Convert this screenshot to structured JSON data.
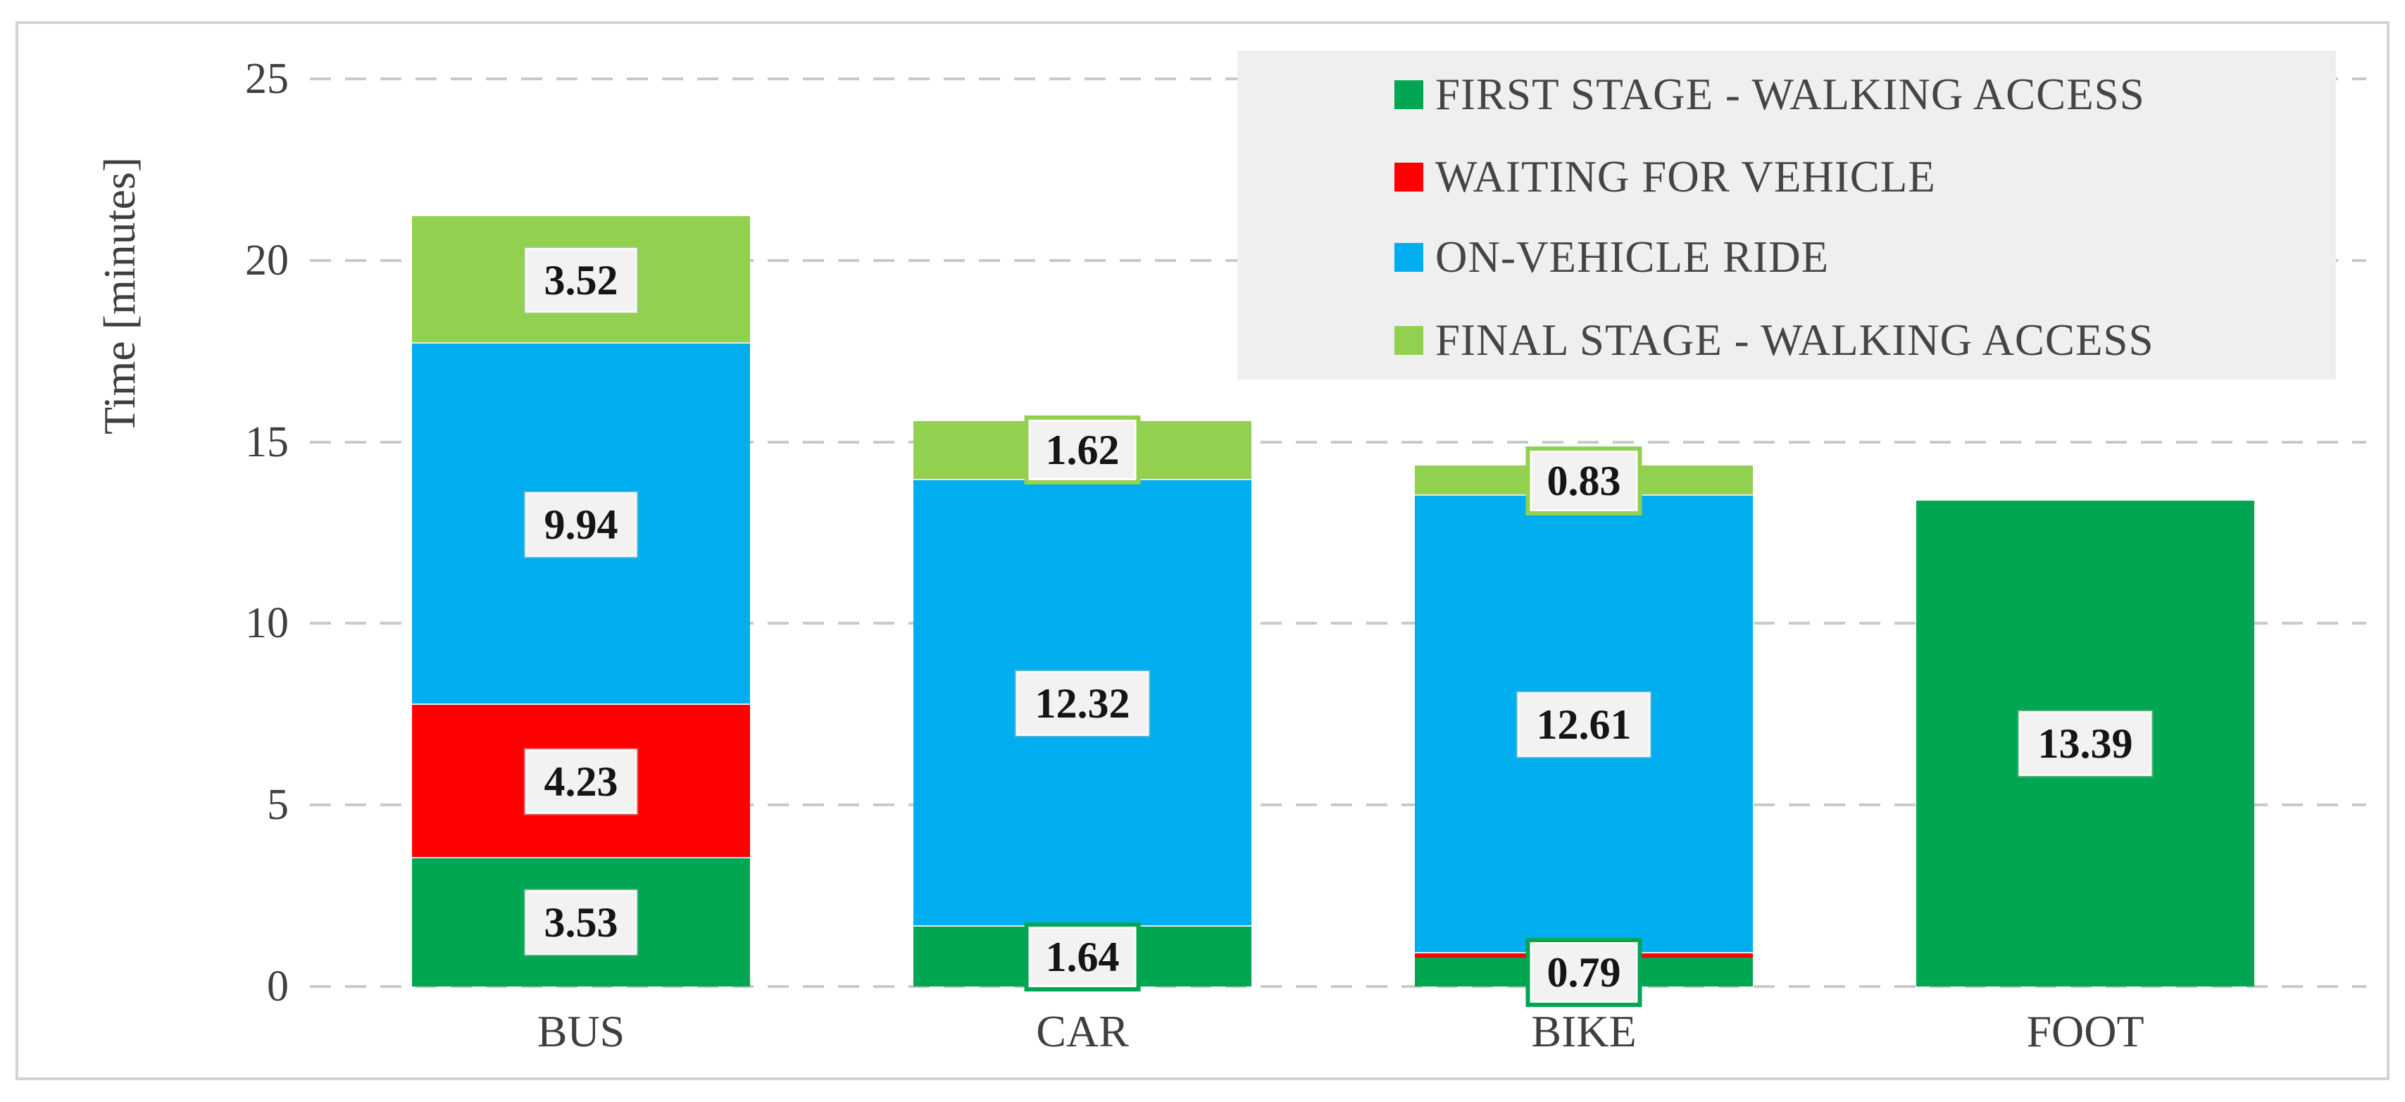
{
  "figure": {
    "background": "#ffffff",
    "frame_border_color": "#d4d4d4"
  },
  "chart_data": {
    "type": "bar",
    "stacked": true,
    "title": "",
    "y_axis": {
      "title": "Time [minutes]",
      "ticks": [
        "0",
        "5",
        "10",
        "15",
        "20",
        "25"
      ],
      "tick_values": [
        0,
        5,
        10,
        15,
        20,
        25
      ],
      "range": [
        0,
        25
      ],
      "grid": "dashed horizontal"
    },
    "categories": [
      "BUS",
      "CAR",
      "BIKE",
      "FOOT"
    ],
    "series": [
      {
        "name": "FIRST STAGE - WALKING ACCESS",
        "color": "#00a651",
        "values": [
          3.53,
          1.64,
          0.79,
          13.39
        ],
        "labels": [
          "3.53",
          "1.64",
          "0.79",
          "13.39"
        ],
        "outlined_labels": [
          false,
          true,
          true,
          false
        ]
      },
      {
        "name": "WAITING FOR VEHICLE",
        "color": "#ff0000",
        "values": [
          4.23,
          0,
          0.12,
          0
        ],
        "labels": [
          "4.23",
          "",
          "",
          ""
        ],
        "outlined_labels": [
          false,
          false,
          false,
          false
        ]
      },
      {
        "name": "ON-VEHICLE RIDE",
        "color": "#00aeef",
        "values": [
          9.94,
          12.32,
          12.61,
          0
        ],
        "labels": [
          "9.94",
          "12.32",
          "12.61",
          ""
        ],
        "outlined_labels": [
          false,
          false,
          false,
          false
        ]
      },
      {
        "name": "FINAL STAGE - WALKING ACCESS",
        "color": "#92d050",
        "values": [
          3.52,
          1.62,
          0.83,
          0
        ],
        "labels": [
          "3.52",
          "1.62",
          "0.83",
          ""
        ],
        "outlined_labels": [
          false,
          true,
          true,
          false
        ]
      }
    ],
    "legend": {
      "position": "top-right",
      "background": "#efefef",
      "entries": [
        "FIRST STAGE - WALKING ACCESS",
        "WAITING FOR VEHICLE",
        "ON-VEHICLE RIDE",
        "FINAL STAGE - WALKING ACCESS"
      ]
    }
  },
  "colors": {
    "grid": "#c9c9c9",
    "axis_text": "#3f3f3f",
    "label_box_bg": "#f2f2f2",
    "label_text": "#151515",
    "legend_text": "#454545"
  }
}
